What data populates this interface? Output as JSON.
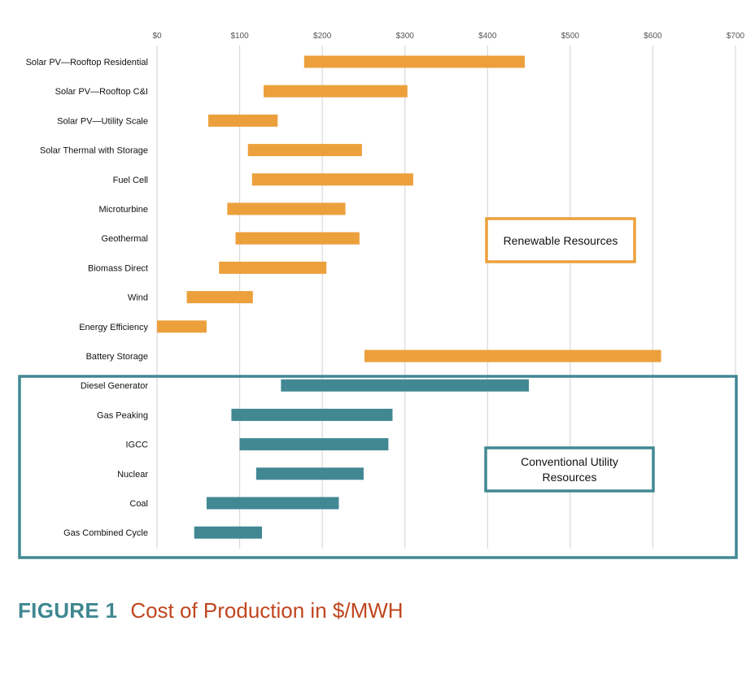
{
  "chart_data": {
    "type": "bar",
    "orientation": "horizontal",
    "subtype": "floating-range",
    "x_ticks": [
      "$0",
      "$100",
      "$200",
      "$300",
      "$400",
      "$500",
      "$600",
      "$700"
    ],
    "xlim": [
      0,
      700
    ],
    "grid": true,
    "groups": [
      {
        "name": "Renewable Resources",
        "color": "#ECA03C",
        "items": [
          {
            "label": "Solar PV—Rooftop Residential",
            "low": 178,
            "high": 445
          },
          {
            "label": "Solar PV—Rooftop C&I",
            "low": 129,
            "high": 303
          },
          {
            "label": "Solar PV—Utility Scale",
            "low": 62,
            "high": 146
          },
          {
            "label": "Solar Thermal with Storage",
            "low": 110,
            "high": 248
          },
          {
            "label": "Fuel Cell",
            "low": 115,
            "high": 310
          },
          {
            "label": "Microturbine",
            "low": 85,
            "high": 228
          },
          {
            "label": "Geothermal",
            "low": 95,
            "high": 245
          },
          {
            "label": "Biomass Direct",
            "low": 75,
            "high": 205
          },
          {
            "label": "Wind",
            "low": 36,
            "high": 116
          },
          {
            "label": "Energy Efficiency",
            "low": 0,
            "high": 60
          },
          {
            "label": "Battery Storage",
            "low": 251,
            "high": 610
          }
        ]
      },
      {
        "name": "Conventional Utility Resources",
        "color": "#418893",
        "items": [
          {
            "label": "Diesel Generator",
            "low": 150,
            "high": 450
          },
          {
            "label": "Gas Peaking",
            "low": 90,
            "high": 285
          },
          {
            "label": "IGCC",
            "low": 100,
            "high": 280
          },
          {
            "label": "Nuclear",
            "low": 120,
            "high": 250
          },
          {
            "label": "Coal",
            "low": 60,
            "high": 220
          },
          {
            "label": "Gas Combined Cycle",
            "low": 45,
            "high": 127
          }
        ]
      }
    ]
  },
  "group_boxes": {
    "renewable": {
      "lines": [
        "Renewable Resources"
      ]
    },
    "conventional": {
      "lines": [
        "Conventional Utility",
        "Resources"
      ]
    }
  },
  "caption": {
    "figure": "FIGURE 1",
    "title": "Cost of Production in $/MWH",
    "figure_color": "#3F8791",
    "title_color": "#C0461F"
  }
}
